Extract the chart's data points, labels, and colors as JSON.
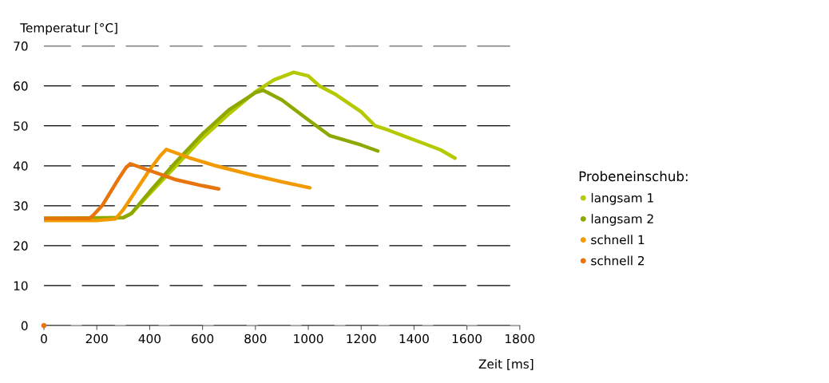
{
  "chart_data": {
    "type": "line",
    "xlabel": "Zeit [ms]",
    "ylabel": "Temperatur [°C]",
    "legend_title": "Probeneinschub:",
    "legend": "right",
    "grid": "y",
    "marker": "none",
    "line_style": "solid",
    "xlim": [
      0,
      1800
    ],
    "xticks": [
      0,
      200,
      400,
      600,
      800,
      1000,
      1200,
      1400,
      1600,
      1800
    ],
    "ylim": [
      0,
      70
    ],
    "yticks": [
      0,
      10,
      20,
      30,
      40,
      50,
      60,
      70
    ],
    "series": [
      {
        "name": "langsam 1",
        "color": "#b5c900",
        "x": [
          0,
          150,
          300,
          330,
          400,
          500,
          600,
          700,
          800,
          870,
          945,
          1000,
          1042,
          1100,
          1200,
          1253,
          1300,
          1400,
          1500,
          1555
        ],
        "values": [
          26.8,
          26.8,
          27,
          28,
          33,
          40,
          47,
          53,
          58.5,
          61.5,
          63.4,
          62.5,
          60,
          58,
          53.5,
          50,
          49,
          46.5,
          44,
          41.9
        ]
      },
      {
        "name": "langsam 2",
        "color": "#8fa800",
        "x": [
          0,
          300,
          330,
          400,
          500,
          600,
          700,
          800,
          830,
          900,
          1000,
          1082,
          1200,
          1263
        ],
        "values": [
          26.8,
          27,
          28,
          33.5,
          41,
          48,
          54,
          58.3,
          58.9,
          56.5,
          51.5,
          47.5,
          45.2,
          43.7
        ]
      },
      {
        "name": "schnell 1",
        "color": "#f39a00",
        "x": [
          0,
          200,
          270,
          300,
          350,
          400,
          440,
          463,
          550,
          650,
          800,
          900,
          1006
        ],
        "values": [
          26.3,
          26.3,
          26.7,
          29,
          34,
          39,
          42.5,
          44.1,
          42,
          40,
          37.5,
          36,
          34.5
        ]
      },
      {
        "name": "schnell 2",
        "color": "#e8740c",
        "x": [
          0,
          172,
          185,
          220,
          280,
          310,
          327,
          400,
          500,
          600,
          661
        ],
        "values": [
          26.8,
          26.8,
          27.5,
          30,
          36.5,
          39.5,
          40.5,
          38.8,
          36.5,
          35,
          34.2
        ]
      },
      {
        "type": "scatter",
        "color": "#e8740c",
        "x": [
          0
        ],
        "values": [
          0
        ]
      }
    ]
  }
}
